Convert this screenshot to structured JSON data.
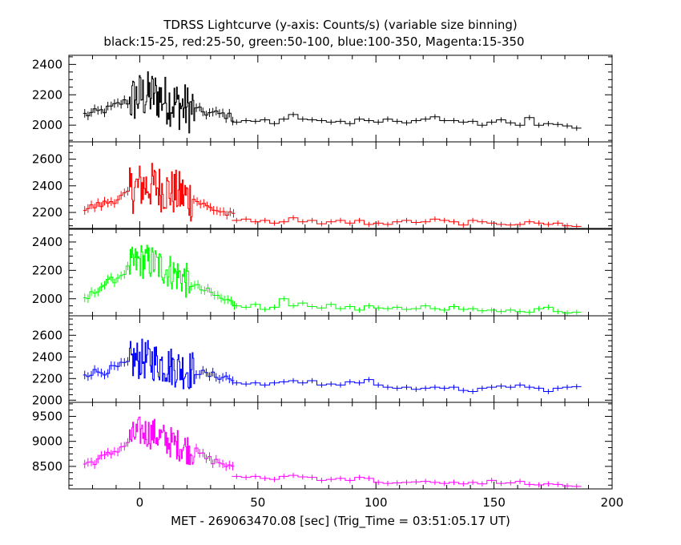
{
  "chart_data": {
    "type": "line",
    "step": true,
    "title": "TDRSS Lightcurve (y-axis: Counts/s) (variable size binning)",
    "subtitle": "black:15-25, red:25-50, green:50-100, blue:100-350, Magenta:15-350",
    "xlabel": "MET - 269063470.08 [sec] (Trig_Time = 03:51:05.17 UT)",
    "xlim": [
      -30,
      200
    ],
    "xticks": [
      0,
      50,
      100,
      150,
      200
    ],
    "xtick_labels": [
      "0",
      "50",
      "100",
      "150",
      "200"
    ],
    "panels": [
      {
        "band": "black:15-25",
        "color": "#000000",
        "ylim": [
          1890,
          2460
        ],
        "yticks": [
          2000,
          2200,
          2400
        ],
        "ytick_labels": [
          "2000",
          "2200",
          "2400"
        ],
        "noise_x": [
          -5,
          23
        ],
        "noise_amp": 165,
        "anchors": [
          [
            -23,
            2070
          ],
          [
            -15,
            2100
          ],
          [
            -8,
            2150
          ],
          [
            -4,
            2160
          ],
          [
            0,
            2190
          ],
          [
            6,
            2200
          ],
          [
            12,
            2160
          ],
          [
            18,
            2120
          ],
          [
            23,
            2100
          ],
          [
            28,
            2080
          ],
          [
            35,
            2070
          ],
          [
            40,
            2040
          ],
          [
            50,
            2030
          ],
          [
            100,
            2020
          ],
          [
            150,
            2010
          ],
          [
            186,
            1980
          ]
        ],
        "bins": [
          [
            41,
            2020
          ],
          [
            45,
            2030
          ],
          [
            49,
            2025
          ],
          [
            53,
            2035
          ],
          [
            57,
            2010
          ],
          [
            61,
            2040
          ],
          [
            65,
            2070
          ],
          [
            69,
            2040
          ],
          [
            73,
            2035
          ],
          [
            77,
            2030
          ],
          [
            81,
            2020
          ],
          [
            85,
            2025
          ],
          [
            89,
            2010
          ],
          [
            93,
            2040
          ],
          [
            97,
            2030
          ],
          [
            101,
            2020
          ],
          [
            105,
            2040
          ],
          [
            109,
            2025
          ],
          [
            113,
            2015
          ],
          [
            117,
            2030
          ],
          [
            121,
            2040
          ],
          [
            125,
            2055
          ],
          [
            129,
            2030
          ],
          [
            133,
            2030
          ],
          [
            137,
            2020
          ],
          [
            141,
            2025
          ],
          [
            145,
            2000
          ],
          [
            149,
            2020
          ],
          [
            153,
            2035
          ],
          [
            157,
            2015
          ],
          [
            161,
            2000
          ],
          [
            165,
            2050
          ],
          [
            169,
            2000
          ],
          [
            173,
            2010
          ],
          [
            177,
            2005
          ],
          [
            181,
            1995
          ],
          [
            185,
            1980
          ]
        ]
      },
      {
        "band": "red:25-50",
        "color": "#ff0000",
        "ylim": [
          2080,
          2730
        ],
        "yticks": [
          2200,
          2400,
          2600
        ],
        "ytick_labels": [
          "2200",
          "2400",
          "2600"
        ],
        "noise_x": [
          -5,
          22
        ],
        "noise_amp": 180,
        "anchors": [
          [
            -23,
            2230
          ],
          [
            -15,
            2270
          ],
          [
            -8,
            2320
          ],
          [
            -4,
            2360
          ],
          [
            0,
            2400
          ],
          [
            6,
            2400
          ],
          [
            12,
            2360
          ],
          [
            18,
            2330
          ],
          [
            22,
            2300
          ],
          [
            28,
            2240
          ],
          [
            35,
            2200
          ],
          [
            40,
            2160
          ],
          [
            60,
            2140
          ],
          [
            120,
            2130
          ],
          [
            186,
            2100
          ]
        ],
        "bins": [
          [
            41,
            2140
          ],
          [
            45,
            2150
          ],
          [
            49,
            2130
          ],
          [
            53,
            2140
          ],
          [
            57,
            2120
          ],
          [
            61,
            2130
          ],
          [
            65,
            2160
          ],
          [
            69,
            2130
          ],
          [
            73,
            2140
          ],
          [
            77,
            2115
          ],
          [
            81,
            2130
          ],
          [
            85,
            2140
          ],
          [
            89,
            2120
          ],
          [
            93,
            2140
          ],
          [
            97,
            2110
          ],
          [
            101,
            2120
          ],
          [
            105,
            2110
          ],
          [
            109,
            2130
          ],
          [
            113,
            2140
          ],
          [
            117,
            2125
          ],
          [
            121,
            2130
          ],
          [
            125,
            2150
          ],
          [
            129,
            2140
          ],
          [
            133,
            2130
          ],
          [
            137,
            2105
          ],
          [
            141,
            2140
          ],
          [
            145,
            2130
          ],
          [
            149,
            2120
          ],
          [
            153,
            2110
          ],
          [
            157,
            2105
          ],
          [
            161,
            2110
          ],
          [
            165,
            2130
          ],
          [
            169,
            2120
          ],
          [
            173,
            2110
          ],
          [
            177,
            2120
          ],
          [
            181,
            2100
          ],
          [
            185,
            2095
          ]
        ]
      },
      {
        "band": "green:50-100",
        "color": "#00ff00",
        "ylim": [
          1880,
          2490
        ],
        "yticks": [
          2000,
          2200,
          2400
        ],
        "ytick_labels": [
          "2000",
          "2200",
          "2400"
        ],
        "noise_x": [
          -5,
          21
        ],
        "noise_amp": 130,
        "anchors": [
          [
            -23,
            2000
          ],
          [
            -18,
            2080
          ],
          [
            -10,
            2150
          ],
          [
            -5,
            2220
          ],
          [
            0,
            2270
          ],
          [
            6,
            2250
          ],
          [
            12,
            2200
          ],
          [
            18,
            2150
          ],
          [
            22,
            2090
          ],
          [
            28,
            2050
          ],
          [
            34,
            2000
          ],
          [
            40,
            1960
          ],
          [
            60,
            1940
          ],
          [
            120,
            1920
          ],
          [
            186,
            1900
          ]
        ],
        "bins": [
          [
            41,
            1950
          ],
          [
            45,
            1940
          ],
          [
            49,
            1960
          ],
          [
            53,
            1925
          ],
          [
            57,
            1940
          ],
          [
            61,
            2000
          ],
          [
            65,
            1950
          ],
          [
            69,
            1970
          ],
          [
            73,
            1945
          ],
          [
            77,
            1935
          ],
          [
            81,
            1960
          ],
          [
            85,
            1930
          ],
          [
            89,
            1945
          ],
          [
            93,
            1920
          ],
          [
            97,
            1950
          ],
          [
            101,
            1935
          ],
          [
            105,
            1930
          ],
          [
            109,
            1940
          ],
          [
            113,
            1925
          ],
          [
            117,
            1930
          ],
          [
            121,
            1950
          ],
          [
            125,
            1930
          ],
          [
            129,
            1920
          ],
          [
            133,
            1945
          ],
          [
            137,
            1925
          ],
          [
            141,
            1930
          ],
          [
            145,
            1915
          ],
          [
            149,
            1920
          ],
          [
            153,
            1910
          ],
          [
            157,
            1920
          ],
          [
            161,
            1910
          ],
          [
            165,
            1905
          ],
          [
            169,
            1930
          ],
          [
            173,
            1940
          ],
          [
            177,
            1910
          ],
          [
            181,
            1900
          ],
          [
            185,
            1905
          ]
        ]
      },
      {
        "band": "blue:100-350",
        "color": "#0000ff",
        "ylim": [
          1980,
          2780
        ],
        "yticks": [
          2000,
          2200,
          2400,
          2600
        ],
        "ytick_labels": [
          "2000",
          "2200",
          "2400",
          "2600"
        ],
        "noise_x": [
          -5,
          23
        ],
        "noise_amp": 190,
        "anchors": [
          [
            -23,
            2250
          ],
          [
            -15,
            2270
          ],
          [
            -8,
            2320
          ],
          [
            -4,
            2360
          ],
          [
            0,
            2380
          ],
          [
            6,
            2360
          ],
          [
            12,
            2320
          ],
          [
            18,
            2290
          ],
          [
            23,
            2270
          ],
          [
            28,
            2230
          ],
          [
            35,
            2220
          ],
          [
            40,
            2170
          ],
          [
            60,
            2160
          ],
          [
            120,
            2130
          ],
          [
            186,
            2120
          ]
        ],
        "bins": [
          [
            41,
            2160
          ],
          [
            45,
            2150
          ],
          [
            49,
            2160
          ],
          [
            53,
            2140
          ],
          [
            57,
            2160
          ],
          [
            61,
            2170
          ],
          [
            65,
            2180
          ],
          [
            69,
            2160
          ],
          [
            73,
            2180
          ],
          [
            77,
            2140
          ],
          [
            81,
            2150
          ],
          [
            85,
            2140
          ],
          [
            89,
            2170
          ],
          [
            93,
            2160
          ],
          [
            97,
            2190
          ],
          [
            101,
            2140
          ],
          [
            105,
            2120
          ],
          [
            109,
            2110
          ],
          [
            113,
            2120
          ],
          [
            117,
            2100
          ],
          [
            121,
            2110
          ],
          [
            125,
            2120
          ],
          [
            129,
            2110
          ],
          [
            133,
            2120
          ],
          [
            137,
            2090
          ],
          [
            141,
            2080
          ],
          [
            145,
            2110
          ],
          [
            149,
            2120
          ],
          [
            153,
            2130
          ],
          [
            157,
            2120
          ],
          [
            161,
            2140
          ],
          [
            165,
            2120
          ],
          [
            169,
            2110
          ],
          [
            173,
            2080
          ],
          [
            177,
            2110
          ],
          [
            181,
            2120
          ],
          [
            185,
            2125
          ]
        ]
      },
      {
        "band": "Magenta:15-350",
        "color": "#ff00ff",
        "ylim": [
          8050,
          9780
        ],
        "yticks": [
          8500,
          9000,
          9500
        ],
        "ytick_labels": [
          "8500",
          "9000",
          "9500"
        ],
        "noise_x": [
          -5,
          23
        ],
        "noise_amp": 320,
        "anchors": [
          [
            -23,
            8550
          ],
          [
            -15,
            8700
          ],
          [
            -8,
            8900
          ],
          [
            -4,
            9050
          ],
          [
            0,
            9200
          ],
          [
            6,
            9150
          ],
          [
            12,
            9000
          ],
          [
            18,
            8900
          ],
          [
            23,
            8800
          ],
          [
            28,
            8650
          ],
          [
            35,
            8550
          ],
          [
            40,
            8400
          ],
          [
            60,
            8300
          ],
          [
            120,
            8200
          ],
          [
            186,
            8100
          ]
        ],
        "bins": [
          [
            41,
            8300
          ],
          [
            45,
            8280
          ],
          [
            49,
            8300
          ],
          [
            53,
            8260
          ],
          [
            57,
            8240
          ],
          [
            61,
            8300
          ],
          [
            65,
            8320
          ],
          [
            69,
            8290
          ],
          [
            73,
            8280
          ],
          [
            77,
            8220
          ],
          [
            81,
            8240
          ],
          [
            85,
            8260
          ],
          [
            89,
            8220
          ],
          [
            93,
            8280
          ],
          [
            97,
            8260
          ],
          [
            101,
            8180
          ],
          [
            105,
            8160
          ],
          [
            109,
            8170
          ],
          [
            113,
            8180
          ],
          [
            117,
            8190
          ],
          [
            121,
            8200
          ],
          [
            125,
            8180
          ],
          [
            129,
            8160
          ],
          [
            133,
            8180
          ],
          [
            137,
            8150
          ],
          [
            141,
            8180
          ],
          [
            145,
            8150
          ],
          [
            149,
            8220
          ],
          [
            153,
            8160
          ],
          [
            157,
            8170
          ],
          [
            161,
            8200
          ],
          [
            165,
            8140
          ],
          [
            169,
            8130
          ],
          [
            173,
            8150
          ],
          [
            177,
            8140
          ],
          [
            181,
            8110
          ],
          [
            185,
            8100
          ]
        ]
      }
    ]
  }
}
